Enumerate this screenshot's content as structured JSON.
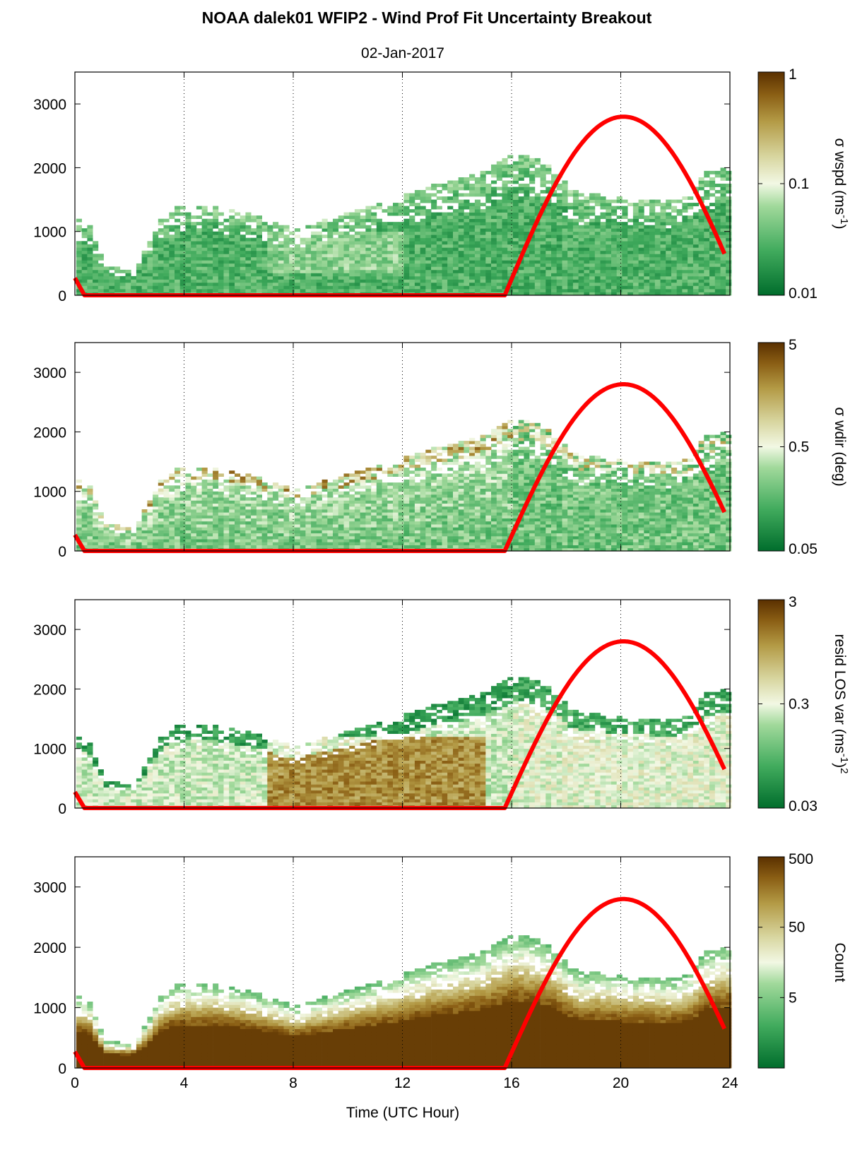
{
  "title": "NOAA dalek01 WFIP2 - Wind Prof Fit Uncertainty Breakout",
  "subtitle": "02-Jan-2017",
  "colors": {
    "sun_curve": "#ff0000",
    "colormap_low": "#006d2c",
    "colormap_mid": "#f2f8e4",
    "colormap_high": "#5a3000"
  },
  "shared_x_axis": {
    "label": "Time (UTC Hour)",
    "range": [
      0,
      24
    ],
    "ticks": [
      0,
      4,
      8,
      12,
      16,
      20,
      24
    ],
    "tick_labels": [
      "0",
      "4",
      "8",
      "12",
      "16",
      "20",
      "24"
    ]
  },
  "chart_data": [
    {
      "type": "heatmap",
      "colorbar_label": "σ wspd (ms",
      "colorbar_label_sup": "-1",
      "colorbar_label_tail": ")",
      "colorbar_scale": "log",
      "colorbar_range": [
        0.01,
        1
      ],
      "colorbar_ticks": [
        "1",
        "0.1",
        "0.01"
      ],
      "ylim": [
        0,
        3500
      ],
      "y_ticks": [
        "0",
        "1000",
        "2000",
        "3000"
      ],
      "xlim": [
        0,
        24
      ],
      "grid": "vertical dotted lines at 4, 8, 12, 16, 20",
      "overlay": "solar elevation curve (red), peak ≈ 2800 near 20 UTC"
    },
    {
      "type": "heatmap",
      "colorbar_label": "σ wdir (deg)",
      "colorbar_scale": "log",
      "colorbar_range": [
        0.05,
        5
      ],
      "colorbar_ticks": [
        "5",
        "0.5",
        "0.05"
      ],
      "ylim": [
        0,
        3500
      ],
      "y_ticks": [
        "0",
        "1000",
        "2000",
        "3000"
      ],
      "xlim": [
        0,
        24
      ],
      "grid": "vertical dotted lines at 4, 8, 12, 16, 20",
      "overlay": "solar elevation curve (red)"
    },
    {
      "type": "heatmap",
      "colorbar_label": "resid LOS var (ms",
      "colorbar_label_sup": "-1",
      "colorbar_label_tail": ")",
      "colorbar_label_sup2": "2",
      "colorbar_scale": "log",
      "colorbar_range": [
        0.03,
        3
      ],
      "colorbar_ticks": [
        "3",
        "0.3",
        "0.03"
      ],
      "ylim": [
        0,
        3500
      ],
      "y_ticks": [
        "0",
        "1000",
        "2000",
        "3000"
      ],
      "xlim": [
        0,
        24
      ],
      "grid": "vertical dotted lines at 4, 8, 12, 16, 20",
      "overlay": "solar elevation curve (red)"
    },
    {
      "type": "heatmap",
      "colorbar_label": "Count",
      "colorbar_scale": "log",
      "colorbar_range": [
        0.5,
        500
      ],
      "colorbar_ticks": [
        "500",
        "50",
        "5"
      ],
      "ylim": [
        0,
        3500
      ],
      "y_ticks": [
        "0",
        "1000",
        "2000",
        "3000"
      ],
      "xlim": [
        0,
        24
      ],
      "grid": "vertical dotted lines at 4, 8, 12, 16, 20",
      "overlay": "solar elevation curve (red)"
    }
  ]
}
